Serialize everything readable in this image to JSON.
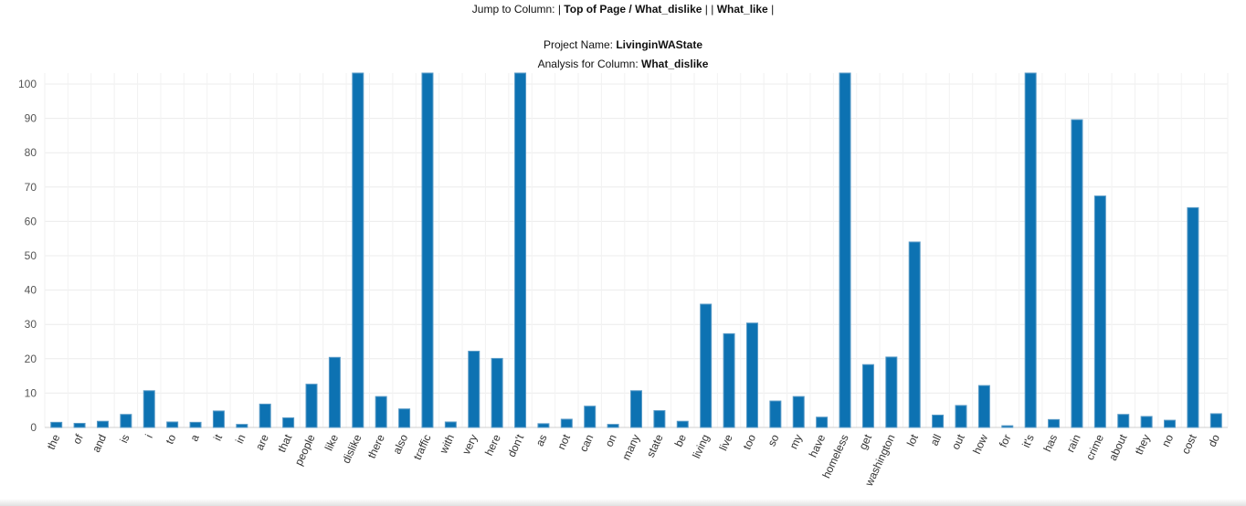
{
  "nav": {
    "prefix": "Jump to Column: |",
    "link_top": "Top of Page / What_dislike",
    "sep1": "| |",
    "link_like": "What_like",
    "sep2": "|"
  },
  "project": {
    "label": "Project Name:",
    "name": "LivinginWAState"
  },
  "analysis": {
    "label": "Analysis for Column:",
    "column": "What_dislike"
  },
  "chart_data": {
    "type": "bar",
    "categories": [
      "the",
      "of",
      "and",
      "is",
      "i",
      "to",
      "a",
      "it",
      "in",
      "are",
      "that",
      "people",
      "like",
      "dislike",
      "there",
      "also",
      "traffic",
      "with",
      "very",
      "here",
      "don't",
      "as",
      "not",
      "can",
      "on",
      "many",
      "state",
      "be",
      "living",
      "live",
      "too",
      "so",
      "my",
      "have",
      "homeless",
      "get",
      "washington",
      "lot",
      "all",
      "out",
      "how",
      "for",
      "it's",
      "has",
      "rain",
      "crime",
      "about",
      "they",
      "no",
      "cost",
      "do"
    ],
    "values": [
      1.5,
      1.2,
      1.8,
      3.8,
      10.7,
      1.6,
      1.5,
      4.8,
      0.9,
      6.8,
      2.8,
      12.6,
      20.4,
      104,
      9.0,
      5.4,
      104,
      1.6,
      22.2,
      20.1,
      104,
      1.1,
      2.4,
      6.2,
      0.9,
      10.7,
      4.9,
      1.8,
      35.9,
      27.3,
      30.4,
      7.7,
      9.0,
      3.0,
      104,
      18.3,
      20.5,
      54.0,
      3.6,
      6.4,
      12.2,
      0.5,
      104,
      2.3,
      89.6,
      67.4,
      3.8,
      3.2,
      2.1,
      64.0,
      4.0
    ],
    "ylim": [
      0,
      100
    ],
    "yticks": [
      0,
      10,
      20,
      30,
      40,
      50,
      60,
      70,
      80,
      90,
      100
    ],
    "bar_color": "#0d72b2",
    "grid_color": "#ececec",
    "grid": true
  }
}
